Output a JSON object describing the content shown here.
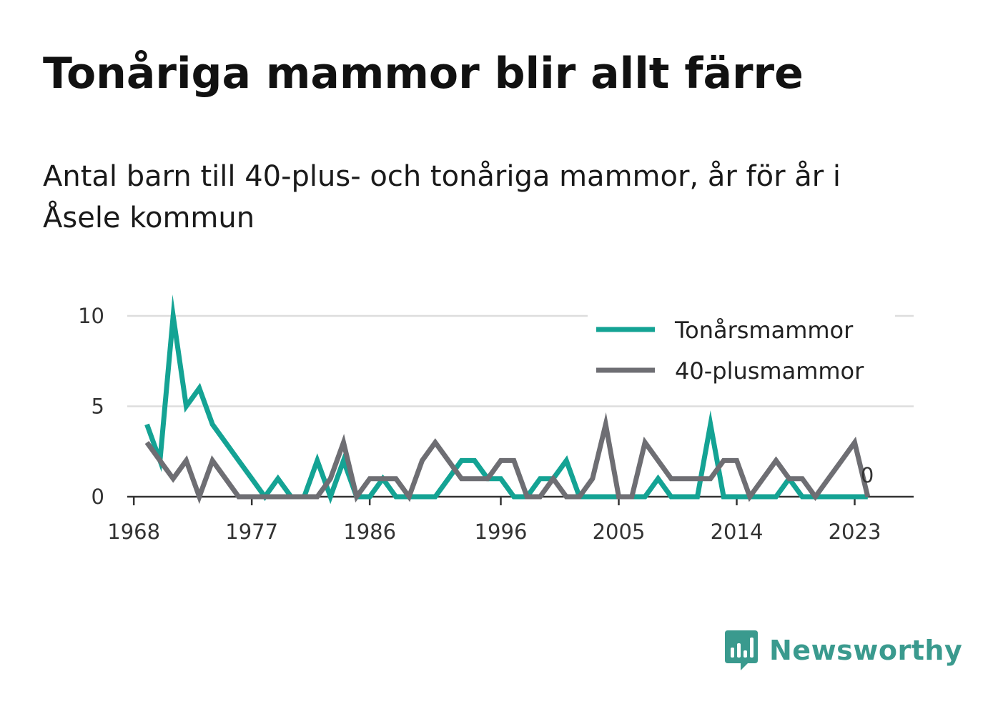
{
  "title": "Tonåriga mammor blir allt färre",
  "subtitle": "Antal barn till 40-plus- och tonåriga mammor, år för år i Åsele kommun",
  "brand": {
    "name": "Newsworthy",
    "color": "#3a9a8e",
    "icon": "newsworthy-logo-icon"
  },
  "chart_data": {
    "type": "line",
    "x": [
      1969,
      1970,
      1971,
      1972,
      1973,
      1974,
      1975,
      1976,
      1977,
      1978,
      1979,
      1980,
      1981,
      1982,
      1983,
      1984,
      1985,
      1986,
      1987,
      1988,
      1989,
      1990,
      1991,
      1992,
      1993,
      1994,
      1995,
      1996,
      1997,
      1998,
      1999,
      2000,
      2001,
      2002,
      2003,
      2004,
      2005,
      2006,
      2007,
      2008,
      2009,
      2010,
      2011,
      2012,
      2013,
      2014,
      2015,
      2016,
      2017,
      2018,
      2019,
      2020,
      2021,
      2022,
      2023,
      2024
    ],
    "series": [
      {
        "name": "Tonårsmammor",
        "color": "#14a394",
        "values": [
          4,
          2,
          10,
          5,
          6,
          4,
          3,
          2,
          1,
          0,
          1,
          0,
          0,
          2,
          0,
          2,
          0,
          0,
          1,
          0,
          0,
          0,
          0,
          1,
          2,
          2,
          1,
          1,
          0,
          0,
          1,
          1,
          2,
          0,
          0,
          0,
          0,
          0,
          0,
          1,
          0,
          0,
          0,
          4,
          0,
          0,
          0,
          0,
          0,
          1,
          0,
          0,
          0,
          0,
          0,
          0
        ]
      },
      {
        "name": "40-plusmammor",
        "color": "#6e6e73",
        "values": [
          3,
          2,
          1,
          2,
          0,
          2,
          1,
          0,
          0,
          0,
          0,
          0,
          0,
          0,
          1,
          3,
          0,
          1,
          1,
          1,
          0,
          2,
          3,
          2,
          1,
          1,
          1,
          2,
          2,
          0,
          0,
          1,
          0,
          0,
          1,
          4,
          0,
          0,
          3,
          2,
          1,
          1,
          1,
          1,
          2,
          2,
          0,
          1,
          2,
          1,
          1,
          0,
          1,
          2,
          3,
          0
        ]
      }
    ],
    "x_ticks": [
      "1968",
      "1977",
      "1986",
      "1996",
      "2005",
      "2014",
      "2023"
    ],
    "x_tick_values": [
      1968,
      1977,
      1986,
      1996,
      2005,
      2014,
      2023
    ],
    "y_ticks": [
      "0",
      "5",
      "10"
    ],
    "y_tick_values": [
      0,
      5,
      10
    ],
    "xlim": [
      1967.5,
      2027.5
    ],
    "ylim": [
      0,
      10
    ],
    "grid": true,
    "legend_position": "top-right",
    "end_label": "0"
  }
}
